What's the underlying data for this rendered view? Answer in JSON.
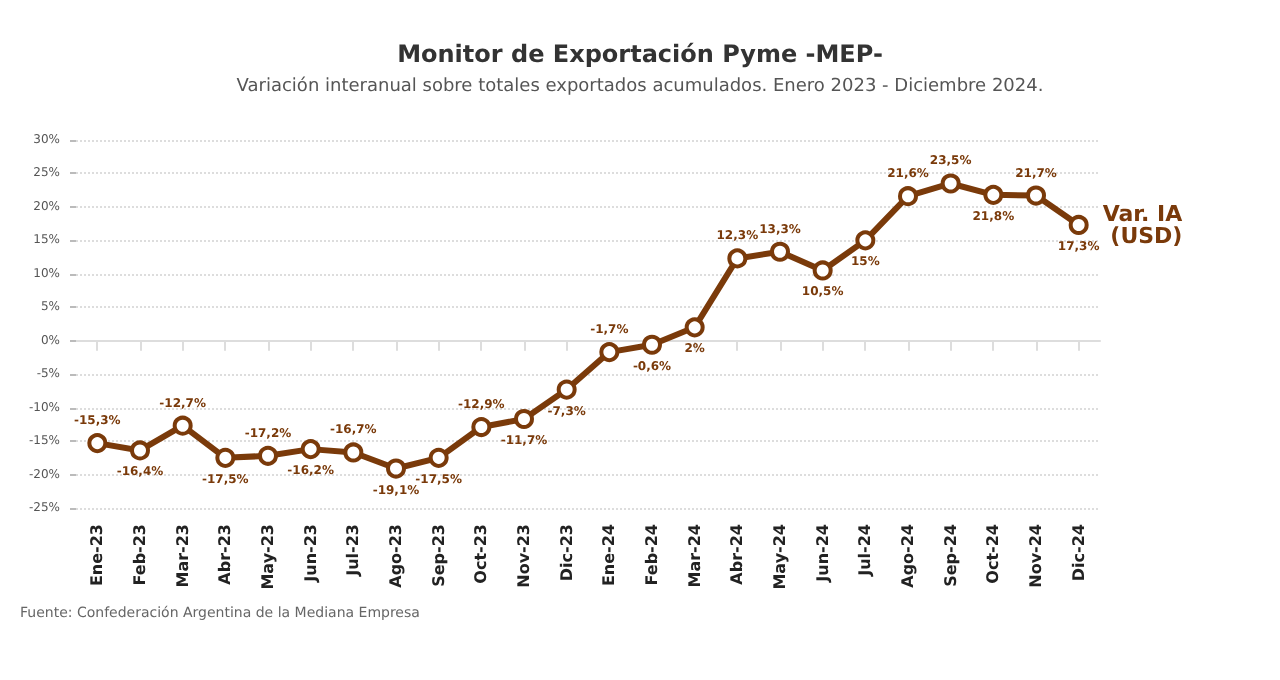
{
  "chart_data": {
    "type": "line",
    "title": "Monitor de Exportación Pyme -MEP-",
    "subtitle": "Variación interanual sobre totales exportados acumulados. Enero 2023 - Diciembre 2024.",
    "categories": [
      "Ene-23",
      "Feb-23",
      "Mar-23",
      "Abr-23",
      "May-23",
      "Jun-23",
      "Jul-23",
      "Ago-23",
      "Sep-23",
      "Oct-23",
      "Nov-23",
      "Dic-23",
      "Ene-24",
      "Feb-24",
      "Mar-24",
      "Abr-24",
      "May-24",
      "Jun-24",
      "Jul-24",
      "Ago-24",
      "Sep-24",
      "Oct-24",
      "Nov-24",
      "Dic-24"
    ],
    "series": [
      {
        "name": "Var. IA (USD)",
        "color": "#7a3a0a",
        "values": [
          -15.3,
          -16.4,
          -12.7,
          -17.5,
          -17.2,
          -16.2,
          -16.7,
          -19.1,
          -17.5,
          -12.9,
          -11.7,
          -7.3,
          -1.7,
          -0.6,
          2,
          12.3,
          13.3,
          10.5,
          15,
          21.6,
          23.5,
          21.8,
          21.7,
          17.3
        ],
        "value_labels": [
          "-15,3%",
          "-16,4%",
          "-12,7%",
          "-17,5%",
          "-17,2%",
          "-16,2%",
          "-16,7%",
          "-19,1%",
          "-17,5%",
          "-12,9%",
          "-11,7%",
          "-7,3%",
          "-1,7%",
          "-0,6%",
          "2%",
          "12,3%",
          "13,3%",
          "10,5%",
          "15%",
          "21,6%",
          "23,5%",
          "21,8%",
          "21,7%",
          "17,3%"
        ]
      }
    ],
    "ylim": [
      -25,
      30
    ],
    "yticks": [
      {
        "value": -25,
        "label": "-25%"
      },
      {
        "value": -20,
        "label": "-20%"
      },
      {
        "value": -15,
        "label": "-15%"
      },
      {
        "value": -10,
        "label": "-10%"
      },
      {
        "value": -5,
        "label": "-5%"
      },
      {
        "value": 0,
        "label": "0%"
      },
      {
        "value": 5,
        "label": "5%"
      },
      {
        "value": 10,
        "label": "10%"
      },
      {
        "value": 15,
        "label": "15%"
      },
      {
        "value": 20,
        "label": "20%"
      },
      {
        "value": 25,
        "label": "25%"
      },
      {
        "value": 30,
        "label": "30%"
      }
    ],
    "grid": "y",
    "legend": false,
    "marker": "circle",
    "line_style": "solid",
    "annotations": [
      "Fuente: Confederación Argentina de la Mediana Empresa"
    ]
  }
}
